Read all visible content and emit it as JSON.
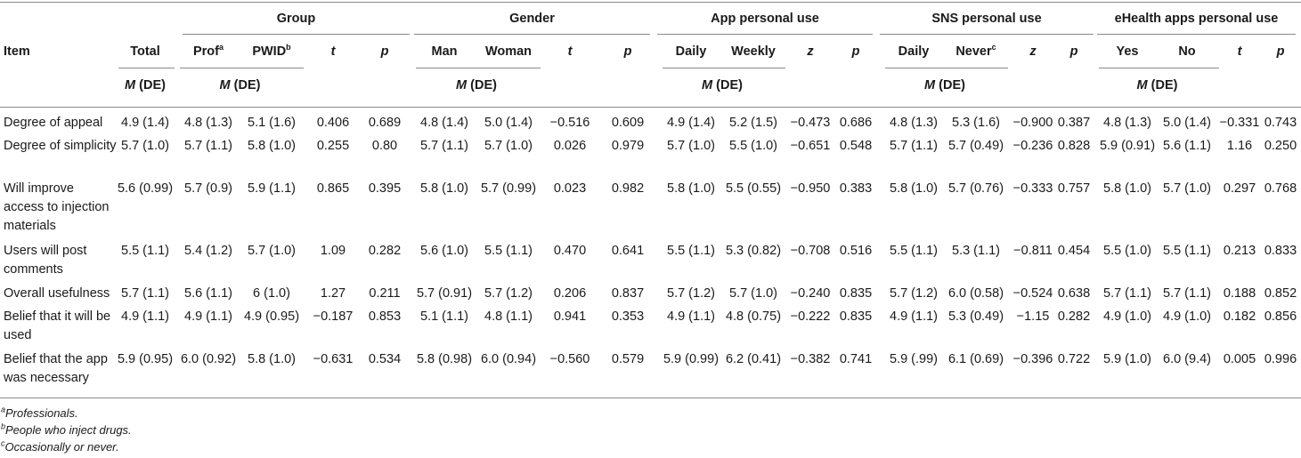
{
  "table": {
    "item_header": "Item",
    "groups": [
      {
        "label": "Group",
        "cols": [
          {
            "text": "Prof",
            "sup": "a"
          },
          {
            "text": "PWID",
            "sup": "b"
          }
        ],
        "stat1": "t",
        "stat2": "p"
      },
      {
        "label": "Gender",
        "cols": [
          {
            "text": "Man",
            "sup": ""
          },
          {
            "text": "Woman",
            "sup": ""
          }
        ],
        "stat1": "t",
        "stat2": "p"
      },
      {
        "label": "App personal use",
        "cols": [
          {
            "text": "Daily",
            "sup": ""
          },
          {
            "text": "Weekly",
            "sup": ""
          }
        ],
        "stat1": "z",
        "stat2": "p"
      },
      {
        "label": "SNS personal use",
        "cols": [
          {
            "text": "Daily",
            "sup": ""
          },
          {
            "text": "Never",
            "sup": "c"
          }
        ],
        "stat1": "z",
        "stat2": "p"
      },
      {
        "label": "eHealth apps personal use",
        "cols": [
          {
            "text": "Yes",
            "sup": ""
          },
          {
            "text": "No",
            "sup": ""
          }
        ],
        "stat1": "t",
        "stat2": "p"
      }
    ],
    "total_header": "Total",
    "md_m": "M",
    "md_rest": " (DE)",
    "rows": [
      {
        "item": "Degree of appeal",
        "cells": [
          "4.9 (1.4)",
          "4.8 (1.3)",
          "5.1 (1.6)",
          "0.406",
          "0.689",
          "4.8 (1.4)",
          "5.0 (1.4)",
          "−0.516",
          "0.609",
          "4.9 (1.4)",
          "5.2 (1.5)",
          "−0.473",
          "0.686",
          "4.8 (1.3)",
          "5.3 (1.6)",
          "−0.900",
          "0.387",
          "4.8 (1.3)",
          "5.0 (1.4)",
          "−0.331",
          "0.743"
        ]
      },
      {
        "item": "Degree of simplicity",
        "cells": [
          "5.7 (1.0)",
          "5.7 (1.1)",
          "5.8 (1.0)",
          "0.255",
          "0.80",
          "5.7 (1.1)",
          "5.7 (1.0)",
          "0.026",
          "0.979",
          "5.7 (1.0)",
          "5.5 (1.0)",
          "−0.651",
          "0.548",
          "5.7 (1.1)",
          "5.7 (0.49)",
          "−0.236",
          "0.828",
          "5.9 (0.91)",
          "5.6 (1.1)",
          "1.16",
          "0.250"
        ]
      },
      {
        "item": "Will improve access to injection materials",
        "cells": [
          "5.6 (0.99)",
          "5.7 (0.9)",
          "5.9 (1.1)",
          "0.865",
          "0.395",
          "5.8 (1.0)",
          "5.7 (0.99)",
          "0.023",
          "0.982",
          "5.8 (1.0)",
          "5.5 (0.55)",
          "−0.950",
          "0.383",
          "5.8 (1.0)",
          "5.7 (0.76)",
          "−0.333",
          "0.757",
          "5.8 (1.0)",
          "5.7 (1.0)",
          "0.297",
          "0.768"
        ]
      },
      {
        "item": "Users will post comments",
        "cells": [
          "5.5 (1.1)",
          "5.4 (1.2)",
          "5.7 (1.0)",
          "1.09",
          "0.282",
          "5.6 (1.0)",
          "5.5 (1.1)",
          "0.470",
          "0.641",
          "5.5 (1.1)",
          "5.3 (0.82)",
          "−0.708",
          "0.516",
          "5.5 (1.1)",
          "5.3 (1.1)",
          "−0.811",
          "0.454",
          "5.5 (1.0)",
          "5.5 (1.1)",
          "0.213",
          "0.833"
        ]
      },
      {
        "item": "Overall usefulness",
        "cells": [
          "5.7 (1.1)",
          "5.6 (1.1)",
          "6 (1.0)",
          "1.27",
          "0.211",
          "5.7 (0.91)",
          "5.7 (1.2)",
          "0.206",
          "0.837",
          "5.7 (1.2)",
          "5.7 (1.0)",
          "−0.240",
          "0.835",
          "5.7 (1.2)",
          "6.0 (0.58)",
          "−0.524",
          "0.638",
          "5.7 (1.1)",
          "5.7 (1.1)",
          "0.188",
          "0.852"
        ]
      },
      {
        "item": "Belief that it will be used",
        "cells": [
          "4.9 (1.1)",
          "4.9 (1.1)",
          "4.9 (0.95)",
          "−0.187",
          "0.853",
          "5.1 (1.1)",
          "4.8 (1.1)",
          "0.941",
          "0.353",
          "4.9 (1.1)",
          "4.8 (0.75)",
          "−0.222",
          "0.835",
          "4.9 (1.1)",
          "5.3 (0.49)",
          "−1.15",
          "0.282",
          "4.9 (1.0)",
          "4.9 (1.0)",
          "0.182",
          "0.856"
        ]
      },
      {
        "item": "Belief that the app was necessary",
        "cells": [
          "5.9 (0.95)",
          "6.0 (0.92)",
          "5.8 (1.0)",
          "−0.631",
          "0.534",
          "5.8 (0.98)",
          "6.0 (0.94)",
          "−0.560",
          "0.579",
          "5.9 (0.99)",
          "6.2 (0.41)",
          "−0.382",
          "0.741",
          "5.9 (.99)",
          "6.1 (0.69)",
          "−0.396",
          "0.722",
          "5.9 (1.0)",
          "6.0 (9.4)",
          "0.005",
          "0.996"
        ]
      }
    ],
    "footnotes": [
      {
        "sup": "a",
        "text": "Professionals."
      },
      {
        "sup": "b",
        "text": "People who inject drugs."
      },
      {
        "sup": "c",
        "text": "Occasionally or never."
      }
    ]
  }
}
